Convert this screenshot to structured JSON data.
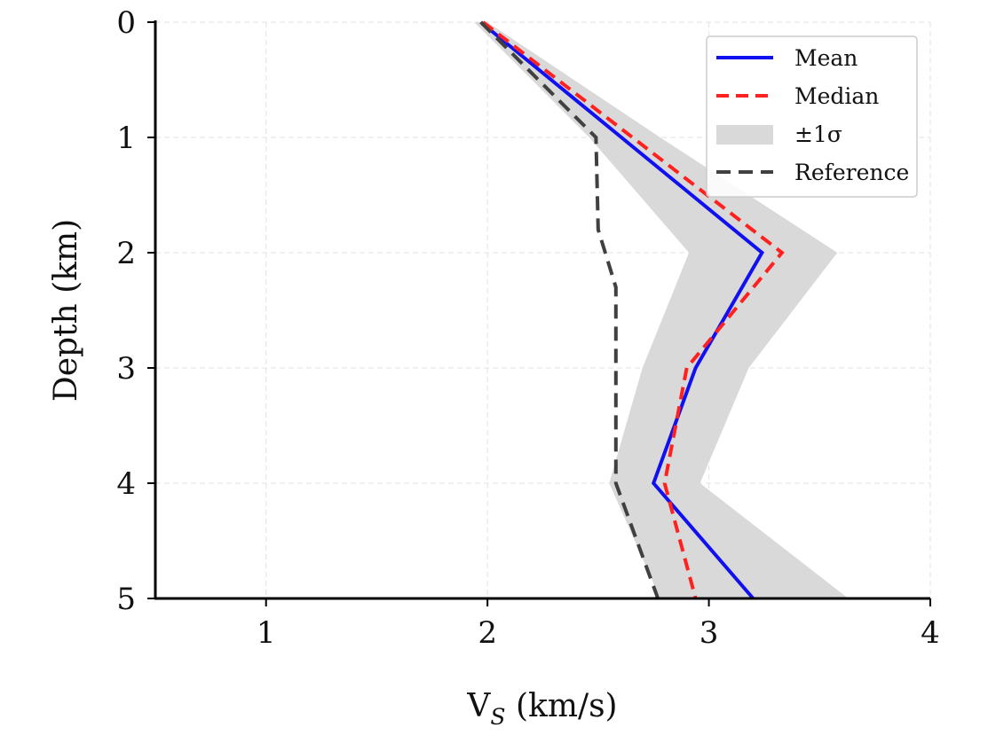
{
  "chart_data": {
    "type": "line",
    "title": "",
    "xlabel": "V",
    "xlabel_sub": "S",
    "xlabel_unit": " (km/s)",
    "ylabel": "Depth (km)",
    "xlim": [
      0.5,
      4
    ],
    "ylim": [
      5,
      0
    ],
    "y_inverted": true,
    "xticks": [
      1,
      2,
      3,
      4
    ],
    "yticks": [
      0,
      1,
      2,
      3,
      4,
      5
    ],
    "grid": true,
    "legend_position": "top-right",
    "series": [
      {
        "name": "Mean",
        "style": "solid",
        "color": "#1010f0",
        "x": [
          1.97,
          3.24,
          2.94,
          2.75,
          3.2
        ],
        "y": [
          0,
          2,
          3,
          4,
          5
        ]
      },
      {
        "name": "Median",
        "style": "dashed",
        "color": "#ff2020",
        "x": [
          1.98,
          3.33,
          2.9,
          2.8,
          2.94
        ],
        "y": [
          0,
          2,
          3,
          4,
          5
        ]
      },
      {
        "name": "Reference",
        "style": "dashed",
        "color": "#404040",
        "x": [
          1.97,
          2.49,
          2.5,
          2.58,
          2.58,
          2.77
        ],
        "y": [
          0,
          1,
          1.8,
          2.3,
          4,
          5
        ]
      }
    ],
    "band": {
      "name": "±1σ",
      "color": "#d9d9d9",
      "y": [
        0,
        1,
        2,
        3,
        4,
        5
      ],
      "lower": [
        1.94,
        2.46,
        2.91,
        2.7,
        2.55,
        2.78
      ],
      "upper": [
        2.0,
        2.78,
        3.58,
        3.18,
        2.96,
        3.63
      ]
    },
    "legend": [
      "Mean",
      "Median",
      "±1σ",
      "Reference"
    ]
  }
}
